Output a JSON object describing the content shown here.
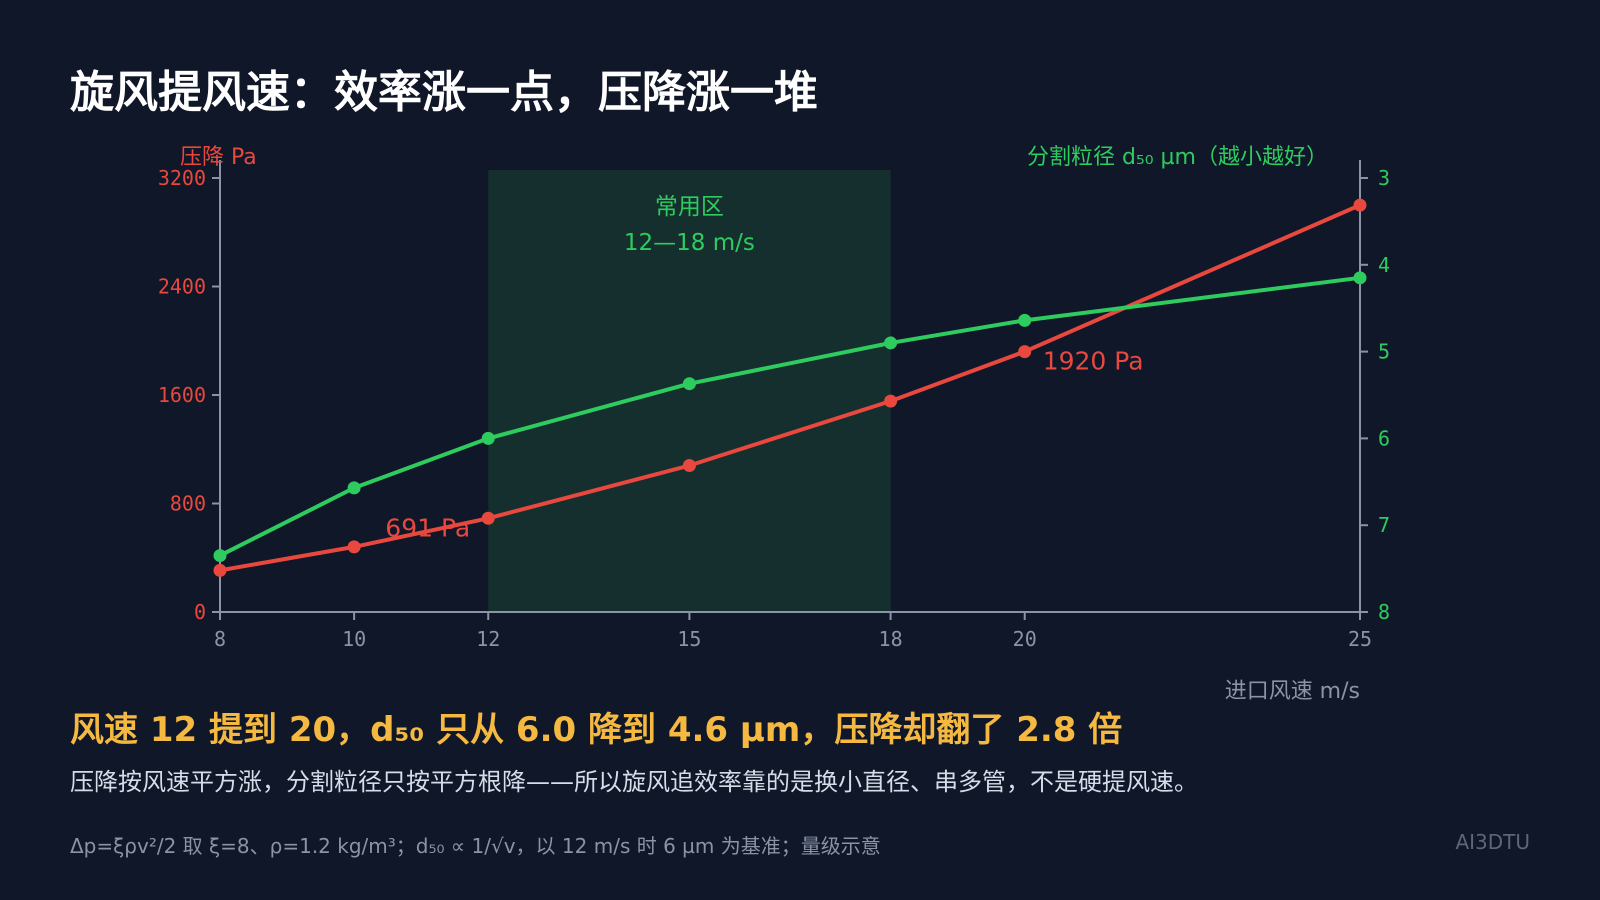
{
  "title": "旋风提风速：效率涨一点，压降涨一堆",
  "chart_data": {
    "type": "line",
    "x": [
      8,
      10,
      12,
      15,
      18,
      20,
      25
    ],
    "x_ticks": [
      8,
      10,
      12,
      15,
      18,
      20,
      25
    ],
    "xlabel": "进口风速 m/s",
    "xlim": [
      8,
      25
    ],
    "left_axis": {
      "label": "压降 Pa",
      "ticks": [
        0,
        800,
        1600,
        2400,
        3200
      ],
      "lim": [
        0,
        3200
      ]
    },
    "right_axis": {
      "label": "分割粒径 d₅₀ µm（越小越好）",
      "ticks": [
        3,
        4,
        5,
        6,
        7,
        8
      ],
      "lim": [
        8,
        3
      ],
      "inverted": true
    },
    "series": [
      {
        "axis": "left",
        "color": "#e8483d",
        "values": [
          307,
          480,
          691,
          1080,
          1555,
          1920,
          3000
        ]
      },
      {
        "axis": "right",
        "color": "#2ecc5e",
        "values": [
          7.35,
          6.57,
          6.0,
          5.37,
          4.9,
          4.64,
          4.15
        ]
      }
    ],
    "shaded_region": {
      "x_range": [
        12,
        18
      ],
      "label_line1": "常用区",
      "label_line2": "12—18 m/s"
    },
    "annotations": [
      {
        "text": "691 Pa",
        "x": 12,
        "y": 691,
        "color": "#e8483d"
      },
      {
        "text": "1920 Pa",
        "x": 20,
        "y": 1920,
        "color": "#e8483d"
      }
    ],
    "grid": false
  },
  "headline": "风速 12 提到 20，d₅₀ 只从 6.0 降到 4.6 µm，压降却翻了 2.8 倍",
  "subline": "压降按风速平方涨，分割粒径只按平方根降——所以旋风追效率靠的是换小直径、串多管，不是硬提风速。",
  "footnote": "Δp=ξρv²/2 取 ξ=8、ρ=1.2 kg/m³；d₅₀ ∝ 1/√v，以 12 m/s 时 6 µm 为基准；量级示意",
  "watermark": "AI3DTU",
  "colors": {
    "background": "#0f1729",
    "pressure": "#e8483d",
    "d50": "#2ecc5e",
    "axis": "#8a94a6",
    "headline": "#f5b942"
  }
}
